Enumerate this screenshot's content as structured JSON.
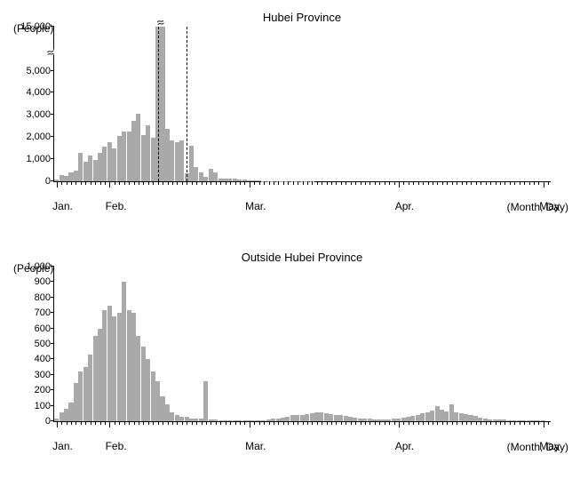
{
  "charts": [
    {
      "title": "Hubei Province",
      "ylabel": "(People)",
      "xlabel": "(Month, Day)",
      "bar_color": "#a9a9a9",
      "background": "#ffffff",
      "yticks_display": [
        0,
        1000,
        2000,
        3000,
        4000,
        5000,
        15000
      ],
      "ytick_positions_pct": [
        0,
        14.3,
        28.6,
        42.9,
        57.2,
        71.5,
        100
      ],
      "y_break": true,
      "months": [
        "Jan.",
        "Feb.",
        "Mar.",
        "Apr.",
        "May"
      ],
      "month_day_starts": [
        0,
        11,
        40,
        71,
        101
      ],
      "dashed_lines_at": [
        21,
        27
      ],
      "max_val_for_scale": 5100,
      "special_bars": {
        "22": 15000
      },
      "type": "bar",
      "values": [
        80,
        300,
        250,
        400,
        500,
        1300,
        900,
        1200,
        1000,
        1300,
        1600,
        1800,
        1500,
        2100,
        2300,
        2300,
        2800,
        3100,
        2150,
        2600,
        2000,
        15000,
        4850,
        2400,
        1900,
        1800,
        1900,
        350,
        1650,
        650,
        400,
        200,
        570,
        400,
        110,
        140,
        110,
        140,
        100,
        80,
        50,
        30,
        30,
        20,
        15,
        15,
        10,
        10,
        10,
        5,
        5,
        5,
        5,
        5,
        3,
        3,
        3,
        3,
        3,
        3,
        2,
        2,
        2,
        2,
        2,
        2,
        2,
        2,
        2,
        2,
        2,
        2,
        2,
        2,
        1,
        1,
        1,
        1,
        1,
        1,
        1,
        1,
        1,
        1,
        1,
        1,
        1,
        1,
        1,
        1,
        1,
        1,
        1,
        1,
        1,
        1,
        1,
        1,
        1,
        1,
        1,
        1,
        0
      ]
    },
    {
      "title": "Outside Hubei Province",
      "ylabel": "(People)",
      "xlabel": "(Month, Day)",
      "bar_color": "#a9a9a9",
      "background": "#ffffff",
      "yticks_display": [
        0,
        100,
        200,
        300,
        400,
        500,
        600,
        700,
        800,
        900,
        1000
      ],
      "ytick_positions_pct": [
        0,
        10,
        20,
        30,
        40,
        50,
        60,
        70,
        80,
        90,
        100
      ],
      "y_break": false,
      "months": [
        "Jan.",
        "Feb.",
        "Mar.",
        "Apr.",
        "May"
      ],
      "month_day_starts": [
        0,
        11,
        40,
        71,
        101
      ],
      "dashed_lines_at": [],
      "max_val_for_scale": 1000,
      "type": "bar",
      "values": [
        20,
        60,
        80,
        120,
        250,
        320,
        350,
        430,
        550,
        600,
        720,
        750,
        680,
        700,
        900,
        720,
        700,
        550,
        480,
        400,
        320,
        260,
        160,
        110,
        60,
        40,
        30,
        30,
        20,
        15,
        15,
        260,
        10,
        10,
        8,
        5,
        5,
        5,
        5,
        5,
        5,
        5,
        5,
        8,
        10,
        15,
        20,
        25,
        30,
        40,
        40,
        40,
        45,
        50,
        55,
        55,
        50,
        45,
        40,
        38,
        35,
        30,
        25,
        20,
        18,
        15,
        12,
        10,
        10,
        12,
        15,
        20,
        25,
        30,
        35,
        40,
        50,
        60,
        70,
        95,
        75,
        65,
        110,
        55,
        50,
        45,
        40,
        35,
        25,
        15,
        10,
        10,
        10,
        10,
        5,
        5,
        5,
        5,
        3,
        3,
        3,
        3,
        0
      ]
    }
  ],
  "layout": {
    "chart_top_positions": [
      30,
      300
    ],
    "chart_heights": [
      175,
      175
    ],
    "x_tick_days": [
      2,
      4,
      6,
      8,
      1,
      3,
      5,
      7,
      9,
      1,
      3,
      5,
      7,
      9,
      1,
      3,
      5,
      7,
      9,
      1
    ]
  }
}
